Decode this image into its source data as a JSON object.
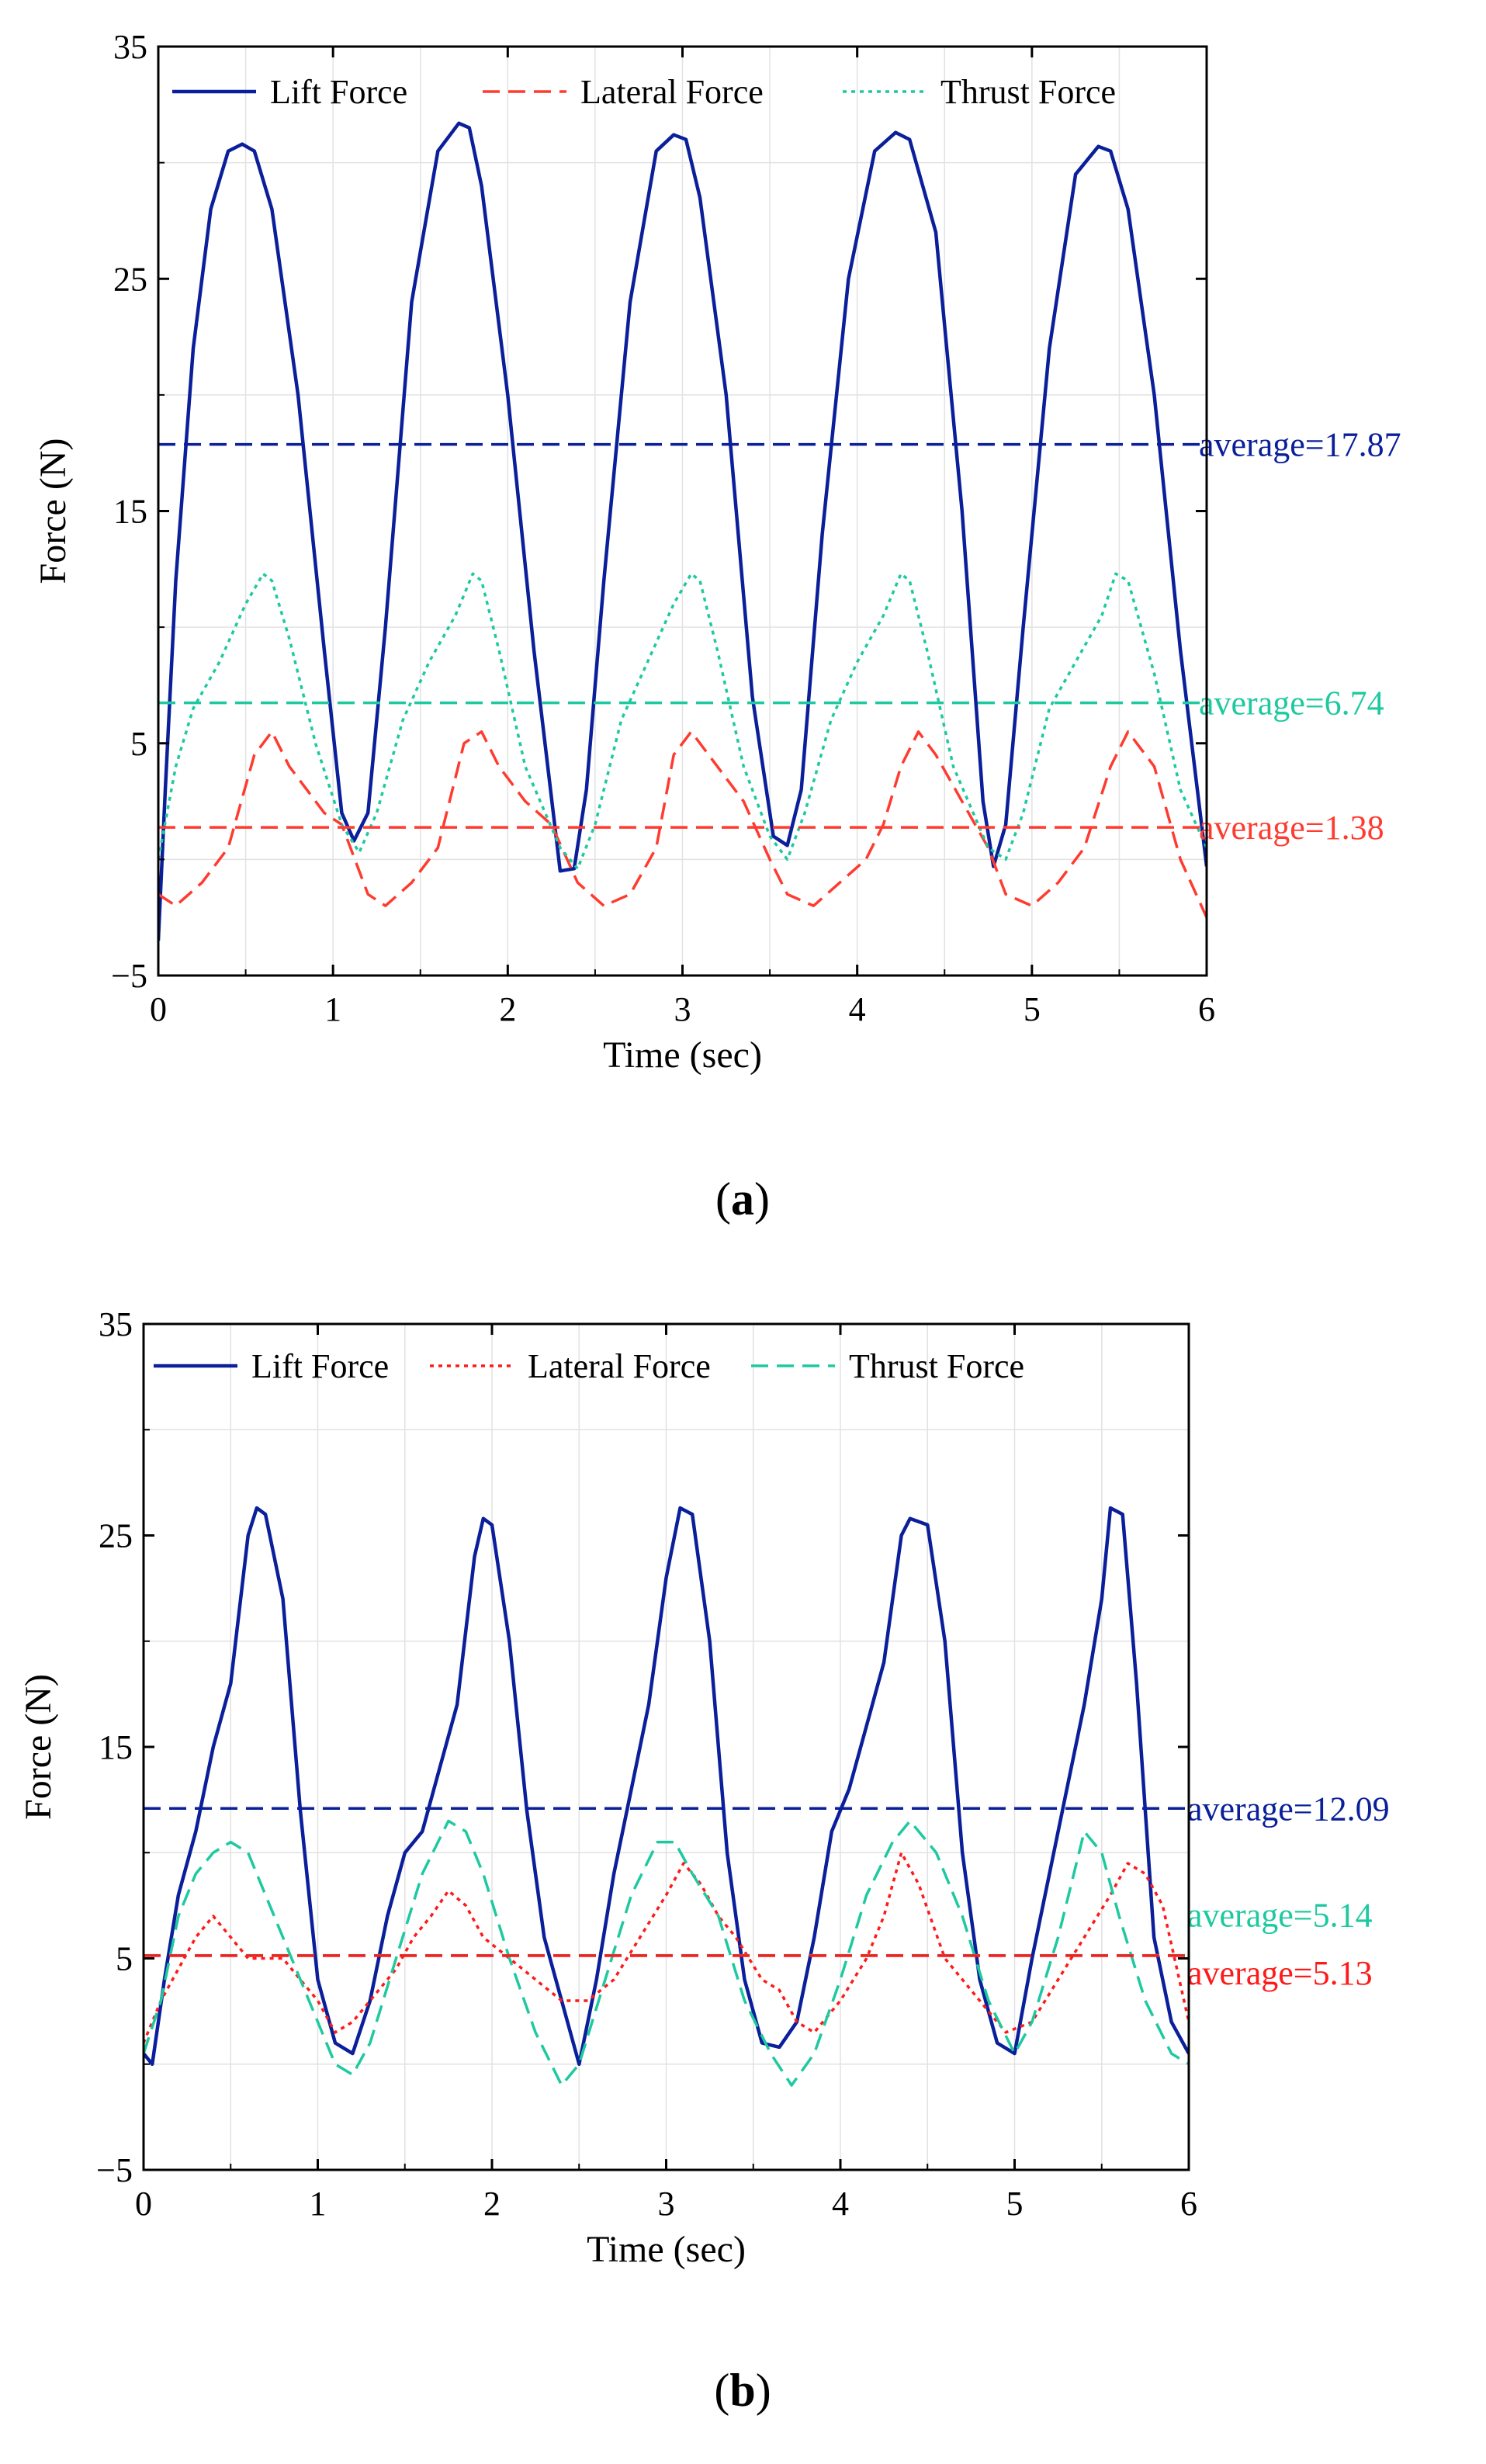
{
  "figure": {
    "panels": [
      "a",
      "b"
    ]
  },
  "chart_data": [
    {
      "type": "line",
      "panel_label": "a",
      "xlabel": "Time (sec)",
      "ylabel": "Force (N)",
      "xlim": [
        0,
        6
      ],
      "ylim": [
        -5,
        35
      ],
      "xticks": [
        0,
        1,
        2,
        3,
        4,
        5,
        6
      ],
      "yticks": [
        -5,
        5,
        15,
        25,
        35
      ],
      "ytick_labels": [
        "−5",
        "5",
        "15",
        "25",
        "35"
      ],
      "grid": true,
      "legend_position": "top",
      "series": [
        {
          "name": "Lift Force",
          "color": "#0a1f99",
          "style": "solid",
          "x": [
            0,
            0.04,
            0.1,
            0.2,
            0.3,
            0.4,
            0.48,
            0.55,
            0.65,
            0.8,
            0.95,
            1.05,
            1.12,
            1.2,
            1.3,
            1.45,
            1.6,
            1.72,
            1.78,
            1.85,
            2.0,
            2.15,
            2.3,
            2.38,
            2.45,
            2.55,
            2.7,
            2.85,
            2.95,
            3.02,
            3.1,
            3.25,
            3.4,
            3.52,
            3.6,
            3.68,
            3.8,
            3.95,
            4.1,
            4.22,
            4.3,
            4.45,
            4.6,
            4.72,
            4.78,
            4.85,
            4.95,
            5.1,
            5.25,
            5.38,
            5.45,
            5.55,
            5.7,
            5.85,
            6.0
          ],
          "y": [
            -3.5,
            3,
            12,
            22,
            28,
            30.5,
            30.8,
            30.5,
            28,
            20,
            9,
            2,
            0.8,
            2,
            10,
            24,
            30.5,
            31.7,
            31.5,
            29,
            20,
            9,
            -0.5,
            -0.4,
            3,
            12,
            24,
            30.5,
            31.2,
            31,
            28.5,
            20,
            7,
            1,
            0.6,
            3,
            14,
            25,
            30.5,
            31.3,
            31,
            27,
            15,
            2.5,
            -0.3,
            1.5,
            10,
            22,
            29.5,
            30.7,
            30.5,
            28,
            20,
            9,
            -0.3
          ]
        },
        {
          "name": "Lateral Force",
          "color": "#ff3b30",
          "style": "dashed",
          "x": [
            0,
            0.1,
            0.25,
            0.4,
            0.55,
            0.65,
            0.75,
            0.85,
            0.95,
            1.05,
            1.2,
            1.3,
            1.45,
            1.6,
            1.75,
            1.85,
            1.95,
            2.1,
            2.25,
            2.4,
            2.55,
            2.7,
            2.85,
            2.95,
            3.05,
            3.2,
            3.35,
            3.5,
            3.6,
            3.75,
            3.9,
            4.05,
            4.15,
            4.25,
            4.35,
            4.45,
            4.6,
            4.75,
            4.85,
            5.0,
            5.15,
            5.3,
            5.45,
            5.55,
            5.7,
            5.85,
            6.0
          ],
          "y": [
            -1.5,
            -2,
            -1,
            0.5,
            4.5,
            5.5,
            4,
            3,
            2,
            1.5,
            -1.5,
            -2,
            -1,
            0.5,
            5,
            5.5,
            4,
            2.5,
            1.5,
            -1,
            -2,
            -1.5,
            0.5,
            4.5,
            5.5,
            4,
            2.5,
            0,
            -1.5,
            -2,
            -1,
            0,
            1.5,
            4,
            5.5,
            4.5,
            2.5,
            0.5,
            -1.5,
            -2,
            -1,
            0.5,
            4,
            5.5,
            4,
            0,
            -2.5
          ]
        },
        {
          "name": "Thrust Force",
          "color": "#1fc9a0",
          "style": "dotted",
          "x": [
            0,
            0.1,
            0.2,
            0.35,
            0.5,
            0.6,
            0.65,
            0.75,
            0.9,
            1.05,
            1.15,
            1.25,
            1.4,
            1.55,
            1.7,
            1.8,
            1.85,
            1.95,
            2.1,
            2.3,
            2.4,
            2.5,
            2.65,
            2.8,
            2.95,
            3.05,
            3.1,
            3.2,
            3.35,
            3.5,
            3.6,
            3.7,
            3.85,
            4.0,
            4.15,
            4.25,
            4.3,
            4.4,
            4.55,
            4.75,
            4.85,
            4.95,
            5.1,
            5.25,
            5.4,
            5.48,
            5.55,
            5.7,
            5.85,
            6.0
          ],
          "y": [
            0,
            4,
            6.5,
            8.5,
            11,
            12.3,
            12,
            9.5,
            5,
            1.5,
            0.3,
            2,
            6,
            8.5,
            10.5,
            12.3,
            12,
            9,
            4,
            0.5,
            -0.4,
            1.5,
            6,
            8.5,
            11,
            12.3,
            12,
            9,
            4,
            1,
            0,
            2,
            6,
            8.5,
            10.5,
            12.3,
            12,
            9,
            4,
            0.5,
            0,
            2,
            6.5,
            8.5,
            10.5,
            12.3,
            12,
            8,
            3,
            0.5
          ]
        }
      ],
      "averages": [
        {
          "value": 17.87,
          "label": "average=17.87",
          "color": "#0a1f99"
        },
        {
          "value": 6.74,
          "label": "average=6.74",
          "color": "#1fc9a0"
        },
        {
          "value": 1.38,
          "label": "average=1.38",
          "color": "#ff3b30"
        }
      ]
    },
    {
      "type": "line",
      "panel_label": "b",
      "xlabel": "Time (sec)",
      "ylabel": "Force (N)",
      "xlim": [
        0,
        6
      ],
      "ylim": [
        -5,
        35
      ],
      "xticks": [
        0,
        1,
        2,
        3,
        4,
        5,
        6
      ],
      "yticks": [
        -5,
        5,
        15,
        25,
        35
      ],
      "ytick_labels": [
        "−5",
        "5",
        "15",
        "25",
        "35"
      ],
      "grid": true,
      "legend_position": "top",
      "series": [
        {
          "name": "Lift Force",
          "color": "#0a1f99",
          "style": "solid",
          "x": [
            0,
            0.05,
            0.12,
            0.2,
            0.3,
            0.4,
            0.5,
            0.6,
            0.65,
            0.7,
            0.8,
            0.9,
            1.0,
            1.1,
            1.2,
            1.3,
            1.4,
            1.5,
            1.6,
            1.7,
            1.8,
            1.9,
            1.95,
            2.0,
            2.1,
            2.2,
            2.3,
            2.4,
            2.5,
            2.6,
            2.7,
            2.8,
            2.9,
            3.0,
            3.08,
            3.15,
            3.25,
            3.35,
            3.45,
            3.55,
            3.65,
            3.75,
            3.85,
            3.95,
            4.05,
            4.15,
            4.25,
            4.35,
            4.4,
            4.5,
            4.6,
            4.7,
            4.8,
            4.9,
            5.0,
            5.1,
            5.2,
            5.3,
            5.4,
            5.5,
            5.55,
            5.62,
            5.7,
            5.8,
            5.9,
            6.0
          ],
          "y": [
            0.5,
            0,
            4,
            8,
            11,
            15,
            18,
            25,
            26.3,
            26,
            22,
            12,
            4,
            1,
            0.5,
            3,
            7,
            10,
            11,
            14,
            17,
            24,
            25.8,
            25.5,
            20,
            12,
            6,
            3,
            0,
            4,
            9,
            13,
            17,
            23,
            26.3,
            26,
            20,
            10,
            4,
            1,
            0.8,
            2,
            6,
            11,
            13,
            16,
            19,
            25,
            25.8,
            25.5,
            20,
            10,
            4,
            1,
            0.5,
            5,
            9,
            13,
            17,
            22,
            26.3,
            26,
            18,
            6,
            2,
            0.5
          ]
        },
        {
          "name": "Lateral Force",
          "color": "#ff1a1a",
          "style": "dotted",
          "x": [
            0,
            0.1,
            0.2,
            0.3,
            0.4,
            0.5,
            0.6,
            0.7,
            0.8,
            0.9,
            1.0,
            1.1,
            1.2,
            1.3,
            1.45,
            1.55,
            1.65,
            1.75,
            1.85,
            1.95,
            2.1,
            2.25,
            2.4,
            2.55,
            2.7,
            2.85,
            3.0,
            3.1,
            3.2,
            3.3,
            3.4,
            3.55,
            3.65,
            3.75,
            3.85,
            4.0,
            4.15,
            4.25,
            4.35,
            4.45,
            4.6,
            4.8,
            4.95,
            5.1,
            5.25,
            5.4,
            5.55,
            5.65,
            5.75,
            5.85,
            6.0
          ],
          "y": [
            1,
            3,
            4.5,
            6,
            7,
            6,
            5,
            5,
            5,
            4,
            3,
            1.5,
            2,
            3,
            4.5,
            6,
            7,
            8.2,
            7.5,
            6,
            5,
            4,
            3,
            3,
            4,
            6,
            8,
            9.5,
            8.5,
            7,
            6,
            4,
            3.5,
            2,
            1.5,
            3,
            5,
            7,
            10,
            8.5,
            5,
            3,
            1.5,
            2,
            4,
            6,
            8,
            9.5,
            9,
            7.5,
            2
          ]
        },
        {
          "name": "Thrust Force",
          "color": "#1fc9a0",
          "style": "dashed",
          "x": [
            0,
            0.1,
            0.2,
            0.3,
            0.4,
            0.5,
            0.6,
            0.7,
            0.85,
            1.0,
            1.1,
            1.2,
            1.3,
            1.45,
            1.6,
            1.75,
            1.85,
            1.95,
            2.1,
            2.25,
            2.4,
            2.5,
            2.65,
            2.8,
            2.95,
            3.05,
            3.15,
            3.3,
            3.45,
            3.6,
            3.72,
            3.85,
            4.0,
            4.15,
            4.3,
            4.4,
            4.55,
            4.7,
            4.85,
            5.0,
            5.1,
            5.25,
            5.4,
            5.5,
            5.6,
            5.75,
            5.9,
            6.0
          ],
          "y": [
            0.5,
            3,
            7,
            9,
            10,
            10.5,
            10,
            8,
            5,
            2,
            0,
            -0.5,
            1,
            5,
            9,
            11.5,
            11,
            9,
            5,
            1.5,
            -1,
            0,
            4,
            8,
            10.5,
            10.5,
            9,
            7,
            3,
            0.5,
            -1,
            0.5,
            4,
            8,
            10.5,
            11.5,
            10,
            7,
            3,
            0.5,
            2,
            6,
            11,
            10,
            7,
            3,
            0.5,
            0
          ]
        }
      ],
      "averages": [
        {
          "value": 12.09,
          "label": "average=12.09",
          "color": "#0a1f99"
        },
        {
          "value": 5.14,
          "label": "average=5.14",
          "color": "#1fc9a0"
        },
        {
          "value": 5.13,
          "label": "average=5.13",
          "color": "#ff1a1a"
        }
      ]
    }
  ]
}
